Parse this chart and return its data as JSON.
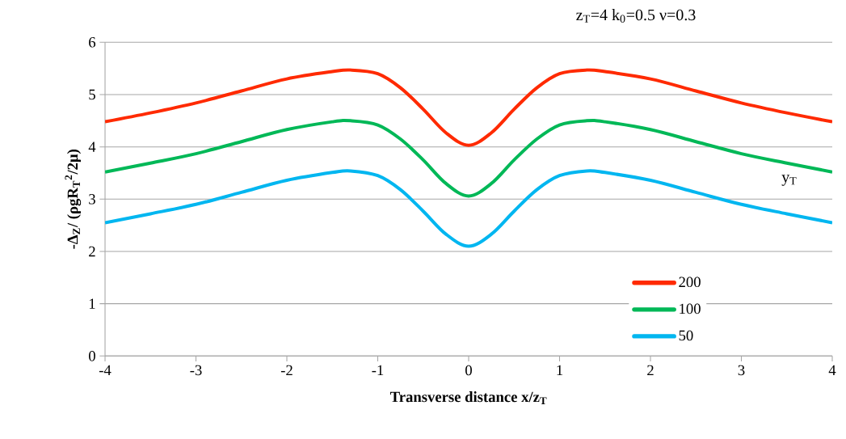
{
  "chart_data": {
    "type": "line",
    "title": "z$_{T}$=4  k$_{0}$=0.5  ν=0.3",
    "xlabel": "Transverse distance x/z$_{T}$",
    "ylabel": "-Δ$_{Z}$/ (ρgR$_{T}$$^{2}$/2μ)",
    "legend_title": "y$_{T}$",
    "x": [
      -4,
      -3.5,
      -3,
      -2.5,
      -2,
      -1.5,
      -1.3,
      -1,
      -0.75,
      -0.5,
      -0.25,
      0,
      0.25,
      0.5,
      0.75,
      1,
      1.3,
      1.5,
      2,
      2.5,
      3,
      3.5,
      4
    ],
    "series": [
      {
        "name": "200",
        "color": "#ff2a00",
        "values": [
          4.48,
          4.65,
          4.84,
          5.07,
          5.3,
          5.44,
          5.47,
          5.4,
          5.13,
          4.72,
          4.27,
          4.03,
          4.27,
          4.72,
          5.13,
          5.4,
          5.47,
          5.44,
          5.3,
          5.07,
          4.84,
          4.65,
          4.48
        ]
      },
      {
        "name": "100",
        "color": "#00b857",
        "values": [
          3.52,
          3.69,
          3.87,
          4.1,
          4.33,
          4.48,
          4.5,
          4.42,
          4.15,
          3.75,
          3.3,
          3.06,
          3.3,
          3.75,
          4.15,
          4.42,
          4.5,
          4.48,
          4.33,
          4.1,
          3.87,
          3.69,
          3.52
        ]
      },
      {
        "name": "50",
        "color": "#00b6f0",
        "values": [
          2.55,
          2.72,
          2.9,
          3.13,
          3.36,
          3.51,
          3.54,
          3.45,
          3.18,
          2.77,
          2.33,
          2.1,
          2.33,
          2.77,
          3.18,
          3.45,
          3.54,
          3.51,
          3.36,
          3.13,
          2.9,
          2.72,
          2.55
        ]
      }
    ],
    "xlim": [
      -4,
      4
    ],
    "ylim": [
      0,
      6
    ],
    "xticks": [
      -4,
      -3,
      -2,
      -1,
      0,
      1,
      2,
      3,
      4
    ],
    "yticks": [
      0,
      1,
      2,
      3,
      4,
      5,
      6
    ],
    "grid": "y",
    "legend": "bottom right",
    "line_style": "solid"
  }
}
